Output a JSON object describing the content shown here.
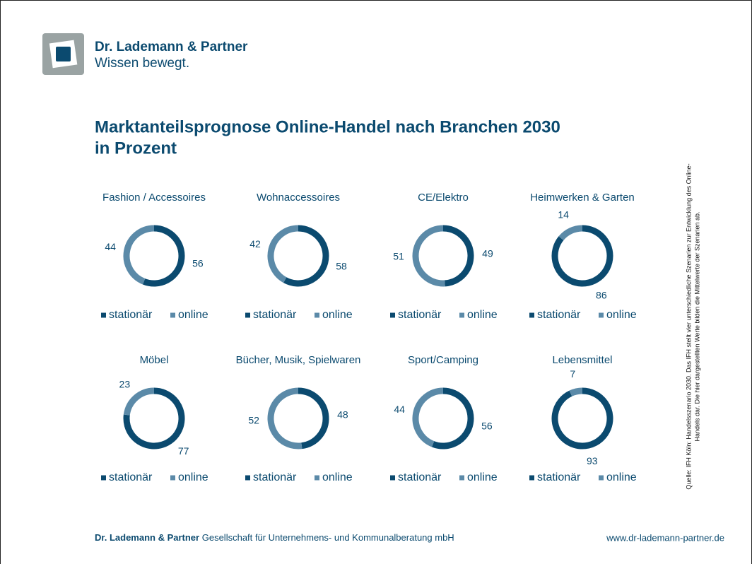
{
  "logo": {
    "name": "Dr. Lademann & Partner",
    "slogan": "Wissen bewegt."
  },
  "title": [
    "Marktanteilsprognose Online-Handel nach Branchen 2030",
    "in Prozent"
  ],
  "chart_data": [
    {
      "type": "pie",
      "title": "Fashion / Accessoires",
      "categories": [
        "stationär",
        "online"
      ],
      "values": [
        56,
        44
      ],
      "colors": [
        "#0b4a6f",
        "#5b8aa8"
      ]
    },
    {
      "type": "pie",
      "title": "Wohnaccessoires",
      "categories": [
        "stationär",
        "online"
      ],
      "values": [
        58,
        42
      ],
      "colors": [
        "#0b4a6f",
        "#5b8aa8"
      ]
    },
    {
      "type": "pie",
      "title": "CE/Elektro",
      "categories": [
        "stationär",
        "online"
      ],
      "values": [
        49,
        51
      ],
      "colors": [
        "#0b4a6f",
        "#5b8aa8"
      ]
    },
    {
      "type": "pie",
      "title": "Heimwerken & Garten",
      "categories": [
        "stationär",
        "online"
      ],
      "values": [
        86,
        14
      ],
      "colors": [
        "#0b4a6f",
        "#5b8aa8"
      ]
    },
    {
      "type": "pie",
      "title": "Möbel",
      "categories": [
        "stationär",
        "online"
      ],
      "values": [
        77,
        23
      ],
      "colors": [
        "#0b4a6f",
        "#5b8aa8"
      ]
    },
    {
      "type": "pie",
      "title": "Bücher, Musik, Spielwaren",
      "categories": [
        "stationär",
        "online"
      ],
      "values": [
        48,
        52
      ],
      "colors": [
        "#0b4a6f",
        "#5b8aa8"
      ]
    },
    {
      "type": "pie",
      "title": "Sport/Camping",
      "categories": [
        "stationär",
        "online"
      ],
      "values": [
        56,
        44
      ],
      "colors": [
        "#0b4a6f",
        "#5b8aa8"
      ]
    },
    {
      "type": "pie",
      "title": "Lebensmittel",
      "categories": [
        "stationär",
        "online"
      ],
      "values": [
        93,
        7
      ],
      "colors": [
        "#0b4a6f",
        "#5b8aa8"
      ]
    }
  ],
  "source": [
    "Quelle: IFH Köln: Handelsszenario 2030. Das IFH stellt vier unterschiedliche Szenarien zur Entwicklung des Online-",
    "Handels dar. Die hier dargestellten Werte bilden die Mittelwerte der Szenarien ab."
  ],
  "footer": {
    "company": "Dr. Lademann & Partner",
    "description": "Gesellschaft für Unternehmens- und Kommunalberatung mbH",
    "url": "www.dr-lademann-partner.de"
  }
}
